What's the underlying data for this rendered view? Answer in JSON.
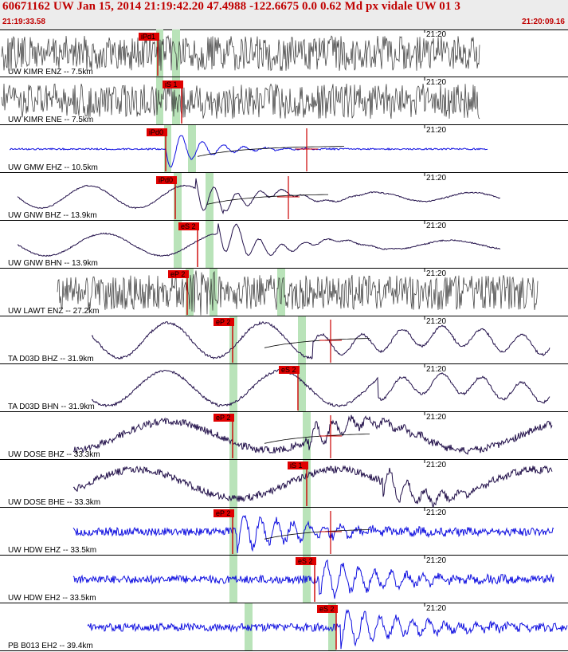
{
  "header": {
    "title": "60671162 UW Jan 15, 2014 21:19:42.20   47.4988 -122.6675  0.0 0.62 Md px vidale UW 01   3",
    "start_time": "21:19:33.58",
    "end_time": "21:20:09.16"
  },
  "colors": {
    "pick_box": "#e00000",
    "pick_line": "#cc0000",
    "window": "#b9e3b9",
    "blue_trace": "#1010e0",
    "gray_trace": "#333333",
    "purple_trace": "#22104a",
    "header_text": "#c00000"
  },
  "traces": [
    {
      "label": "UW KIMR ENZ -- 7.5km",
      "tick_label": "21:20",
      "pick_label": "iPd1",
      "color": "gray",
      "style": "noise"
    },
    {
      "label": "UW KIMR ENE -- 7.5km",
      "tick_label": "21:20",
      "pick_label": "iS 1",
      "color": "gray",
      "style": "noise"
    },
    {
      "label": "UW GMW EHZ -- 10.5km",
      "tick_label": "21:20",
      "pick_label": "iPd0",
      "color": "blue",
      "style": "event"
    },
    {
      "label": "UW GNW BHZ -- 13.9km",
      "tick_label": "21:20",
      "pick_label": "iPd0",
      "color": "purple",
      "style": "event_long"
    },
    {
      "label": "UW GNW BHN -- 13.9km",
      "tick_label": "21:20",
      "pick_label": "eS 2",
      "color": "purple",
      "style": "event_long"
    },
    {
      "label": "UW LAWT ENZ -- 27.2km",
      "tick_label": "21:20",
      "pick_label": "eP 2",
      "color": "gray",
      "style": "noise"
    },
    {
      "label": "TA D03D BHZ -- 31.9km",
      "tick_label": "21:20",
      "pick_label": "eP 2",
      "color": "purple",
      "style": "long"
    },
    {
      "label": "TA D03D BHN -- 31.9km",
      "tick_label": "21:20",
      "pick_label": "eS 2",
      "color": "purple",
      "style": "long"
    },
    {
      "label": "UW DOSE BHZ -- 33.3km",
      "tick_label": "21:20",
      "pick_label": "eP 2",
      "color": "purple",
      "style": "long_noisy"
    },
    {
      "label": "UW DOSE BHE -- 33.3km",
      "tick_label": "21:20",
      "pick_label": "iS 1",
      "color": "purple",
      "style": "long_noisy"
    },
    {
      "label": "UW HDW EHZ -- 33.5km",
      "tick_label": "21:20",
      "pick_label": "eP 2",
      "color": "blue",
      "style": "event_noisy"
    },
    {
      "label": "UW HDW EH2 -- 33.5km",
      "tick_label": "21:20",
      "pick_label": "eS 2",
      "color": "blue",
      "style": "event_noisy"
    },
    {
      "label": "PB B013 EH2 -- 39.4km",
      "tick_label": "21:20",
      "pick_label": "eS 2",
      "color": "blue",
      "style": "event_noisy"
    }
  ]
}
